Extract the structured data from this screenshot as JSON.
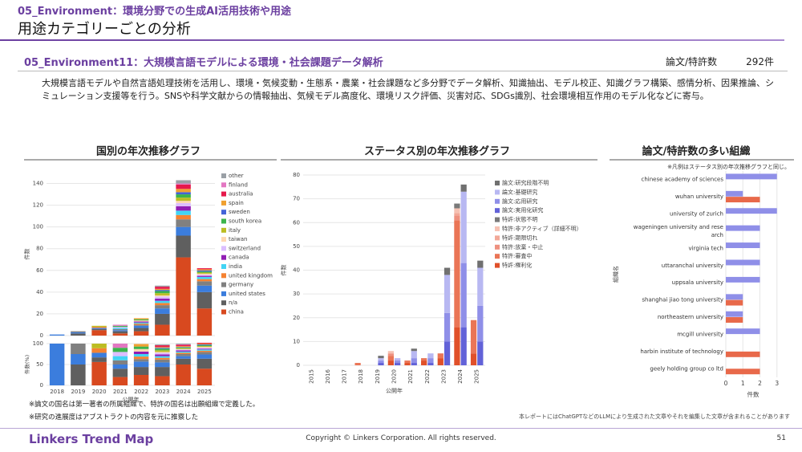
{
  "header": {
    "category": "05_Environment：環境分野での生成AI活用技術や用途",
    "title": "用途カテゴリーごとの分析"
  },
  "section": {
    "title": "05_Environment11：大規模言語モデルによる環境・社会課題データ解析",
    "count_label": "論文/特許数",
    "count": "292件",
    "description": "大規模言語モデルや自然言語処理技術を活用し、環境・気候変動・生態系・農業・社会課題など多分野でデータ解析、知識抽出、モデル校正、知識グラフ構築、感情分析、因果推論、シミュレーション支援等を行う。SNSや科学文献からの情報抽出、気候モデル高度化、環境リスク評価、災害対応、SDGs識別、社会環境相互作用のモデル化などに寄与。"
  },
  "chart_data": [
    {
      "type": "bar",
      "title": "国別の年次推移グラフ",
      "xlabel": "公開年",
      "ylabel": "件数",
      "share_ylabel": "件数(%)",
      "categories": [
        "2018",
        "2019",
        "2020",
        "2021",
        "2022",
        "2023",
        "2024",
        "2025"
      ],
      "ylim": [
        0,
        150
      ],
      "yticks": [
        0,
        20,
        40,
        60,
        80,
        100,
        120,
        140
      ],
      "share_ylim": [
        0,
        100
      ],
      "share_yticks": [
        0,
        50,
        100
      ],
      "grid": true,
      "series": [
        {
          "name": "other",
          "color": "#9aa0a6",
          "values": [
            0,
            0,
            0,
            0,
            0,
            1,
            3,
            0
          ],
          "shares": [
            0,
            0,
            0,
            0,
            0,
            2,
            2,
            0
          ]
        },
        {
          "name": "finland",
          "color": "#e377c2",
          "values": [
            0,
            0,
            0,
            1,
            0,
            0,
            1,
            0
          ],
          "shares": [
            0,
            0,
            0,
            10,
            0,
            0,
            1,
            0
          ]
        },
        {
          "name": "australia",
          "color": "#e6194b",
          "values": [
            0,
            0,
            0,
            0,
            0,
            2,
            4,
            1
          ],
          "shares": [
            0,
            0,
            0,
            0,
            0,
            4,
            3,
            2
          ]
        },
        {
          "name": "spain",
          "color": "#f0a030",
          "values": [
            0,
            0,
            0,
            0,
            1,
            1,
            3,
            1
          ],
          "shares": [
            0,
            0,
            0,
            0,
            6,
            2,
            2,
            2
          ]
        },
        {
          "name": "sweden",
          "color": "#4363d8",
          "values": [
            0,
            0,
            0,
            0,
            0,
            1,
            2,
            1
          ],
          "shares": [
            0,
            0,
            0,
            0,
            0,
            2,
            1,
            2
          ]
        },
        {
          "name": "south korea",
          "color": "#3cb44b",
          "values": [
            0,
            0,
            0,
            1,
            1,
            2,
            3,
            1
          ],
          "shares": [
            0,
            0,
            0,
            10,
            6,
            4,
            2,
            2
          ]
        },
        {
          "name": "italy",
          "color": "#bcbd22",
          "values": [
            0,
            0,
            1,
            0,
            0,
            2,
            3,
            1
          ],
          "shares": [
            0,
            0,
            11,
            0,
            0,
            4,
            2,
            2
          ]
        },
        {
          "name": "taiwan",
          "color": "#ffd8b1",
          "values": [
            0,
            0,
            0,
            0,
            1,
            1,
            2,
            1
          ],
          "shares": [
            0,
            0,
            0,
            0,
            6,
            2,
            1,
            2
          ]
        },
        {
          "name": "switzerland",
          "color": "#dcbeff",
          "values": [
            0,
            0,
            0,
            1,
            0,
            2,
            3,
            1
          ],
          "shares": [
            0,
            0,
            0,
            10,
            0,
            4,
            2,
            2
          ]
        },
        {
          "name": "canada",
          "color": "#911eb4",
          "values": [
            0,
            0,
            0,
            0,
            1,
            2,
            4,
            1
          ],
          "shares": [
            0,
            0,
            0,
            0,
            6,
            4,
            3,
            2
          ]
        },
        {
          "name": "india",
          "color": "#42d4f4",
          "values": [
            0,
            0,
            0,
            1,
            1,
            2,
            4,
            2
          ],
          "shares": [
            0,
            0,
            0,
            10,
            6,
            4,
            3,
            3
          ]
        },
        {
          "name": "united kingdom",
          "color": "#f58231",
          "values": [
            0,
            0,
            1,
            0,
            1,
            2,
            4,
            2
          ],
          "shares": [
            0,
            0,
            11,
            0,
            6,
            4,
            3,
            3
          ]
        },
        {
          "name": "germany",
          "color": "#808080",
          "values": [
            0,
            1,
            0,
            1,
            1,
            3,
            7,
            4
          ],
          "shares": [
            0,
            25,
            0,
            10,
            6,
            7,
            5,
            6
          ]
        },
        {
          "name": "united states",
          "color": "#3b7ddd",
          "values": [
            1,
            1,
            1,
            1,
            2,
            5,
            8,
            6
          ],
          "shares": [
            100,
            25,
            11,
            10,
            13,
            11,
            6,
            10
          ]
        },
        {
          "name": "n/a",
          "color": "#5f5f5f",
          "values": [
            0,
            2,
            1,
            2,
            3,
            10,
            20,
            15
          ],
          "shares": [
            0,
            50,
            11,
            20,
            19,
            22,
            14,
            24
          ]
        },
        {
          "name": "china",
          "color": "#d8491f",
          "values": [
            0,
            0,
            5,
            2,
            4,
            10,
            72,
            25
          ],
          "shares": [
            0,
            0,
            56,
            20,
            25,
            22,
            50,
            40
          ]
        }
      ]
    },
    {
      "type": "bar",
      "title": "ステータス別の年次推移グラフ",
      "xlabel": "公開年",
      "ylabel": "件数",
      "categories": [
        "2015",
        "2016",
        "2017",
        "2018",
        "2019",
        "2020",
        "2021",
        "2022",
        "2023",
        "2024",
        "2025"
      ],
      "ylim": [
        0,
        80
      ],
      "yticks": [
        0,
        10,
        20,
        30,
        40,
        50,
        60,
        70,
        80
      ],
      "grid": true,
      "series": [
        {
          "name": "論文:研究段階不明",
          "color": "#707070",
          "values": [
            0,
            0,
            0,
            0,
            1,
            0,
            1,
            0,
            3,
            3,
            3
          ]
        },
        {
          "name": "論文:基礎研究",
          "color": "#b8b8f2",
          "values": [
            0,
            0,
            0,
            0,
            1,
            1,
            3,
            2,
            16,
            30,
            16
          ]
        },
        {
          "name": "論文:応用研究",
          "color": "#8f8fe8",
          "values": [
            0,
            0,
            0,
            0,
            1,
            1,
            2,
            2,
            12,
            27,
            15
          ]
        },
        {
          "name": "論文:実用化研究",
          "color": "#6262d8",
          "values": [
            0,
            0,
            0,
            0,
            1,
            1,
            1,
            1,
            10,
            16,
            10
          ]
        },
        {
          "name": "特許:状態不明",
          "color": "#7a7a7a",
          "values": [
            0,
            0,
            0,
            0,
            0,
            0,
            0,
            0,
            0,
            2,
            0
          ]
        },
        {
          "name": "特許:非アクティブ（詳細不明）",
          "color": "#f6c2b4",
          "values": [
            0,
            0,
            0,
            0,
            0,
            1,
            0,
            0,
            0,
            2,
            0
          ]
        },
        {
          "name": "特許:期限切れ",
          "color": "#f2a898",
          "values": [
            0,
            0,
            0,
            0,
            0,
            0,
            0,
            0,
            0,
            1,
            0
          ]
        },
        {
          "name": "特許:放棄・中止",
          "color": "#ee9180",
          "values": [
            0,
            0,
            0,
            0,
            0,
            1,
            0,
            0,
            0,
            2,
            0
          ]
        },
        {
          "name": "特許:審査中",
          "color": "#ea7556",
          "values": [
            0,
            0,
            0,
            1,
            0,
            2,
            1,
            1,
            2,
            45,
            14
          ]
        },
        {
          "name": "特許:権利化",
          "color": "#e0502a",
          "values": [
            0,
            0,
            0,
            0,
            0,
            2,
            1,
            2,
            3,
            16,
            5
          ]
        }
      ]
    },
    {
      "type": "barh",
      "title": "論文/特許数の多い組織",
      "note": "※凡例はステータス別の年次推移グラフと同じ。",
      "xlabel": "件数",
      "ylabel": "組織名",
      "categories": [
        "chinese academy of sciences",
        "wuhan university",
        "university of zurich",
        "wageningen university and research",
        "virginia tech",
        "uttaranchal university",
        "uppsala university",
        "shanghai jiao tong university",
        "northeastern university",
        "mcgill university",
        "harbin institute of technology",
        "geely holding group co ltd"
      ],
      "xlim": [
        0,
        3.2
      ],
      "xticks": [
        0,
        1,
        2,
        3
      ],
      "grid": true,
      "series": [
        {
          "color": "#8f8fe8",
          "values": [
            3,
            1,
            3,
            2,
            2,
            2,
            2,
            1,
            1,
            2,
            0,
            0
          ]
        },
        {
          "color": "#e8694a",
          "values": [
            0,
            2,
            0,
            0,
            0,
            0,
            0,
            1,
            1,
            0,
            2,
            2
          ]
        }
      ]
    }
  ],
  "notes": [
    "※論文の国名は第一著者の所属組織で、特許の国名は出願組織で定義した。",
    "※研究の進展度はアブストラクトの内容を元に推察した"
  ],
  "disclaimer": "本レポートにはChatGPTなどのLLMにより生成された文章やそれを編集した文章が含まれることがあります",
  "footer": {
    "brand": "Linkers Trend Map",
    "copyright": "Copyright © Linkers Corporation. All rights reserved.",
    "page": "51"
  }
}
